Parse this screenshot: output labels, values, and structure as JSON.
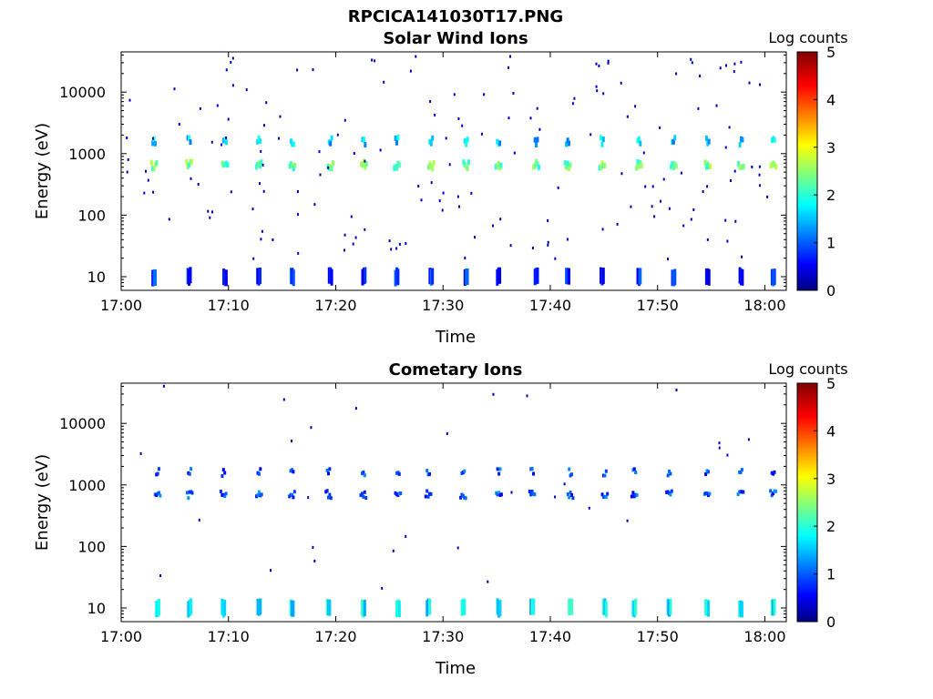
{
  "figure_title": "RPCICA141030T17.PNG",
  "colors": {
    "colormap": [
      "#00007f",
      "#0000ff",
      "#00ffff",
      "#ffff00",
      "#ff0000",
      "#7f0000"
    ],
    "frame": "#000000",
    "background": "#ffffff"
  },
  "chart_data": [
    {
      "type": "heatmap",
      "title": "Solar Wind Ions",
      "xlabel": "Time",
      "ylabel": "Energy (eV)",
      "x_ticks": [
        "17:00",
        "17:10",
        "17:20",
        "17:30",
        "17:40",
        "17:50",
        "18:00"
      ],
      "y_ticks": [
        "10",
        "100",
        "1000",
        "10000"
      ],
      "y_scale": "log",
      "y_range": [
        6,
        45000
      ],
      "x_range_minutes": [
        0,
        62
      ],
      "colorbar": {
        "label": "Log counts",
        "range": [
          0,
          5
        ],
        "ticks": [
          "0",
          "1",
          "2",
          "3",
          "4",
          "5"
        ]
      },
      "sweep_period_minutes": 3.2,
      "bands": [
        {
          "energy": 650,
          "log_counts": 2.4
        },
        {
          "energy": 1600,
          "log_counts": 1.6
        },
        {
          "energy": 10,
          "log_counts": 0.8
        }
      ]
    },
    {
      "type": "heatmap",
      "title": "Cometary Ions",
      "xlabel": "Time",
      "ylabel": "Energy (eV)",
      "x_ticks": [
        "17:00",
        "17:10",
        "17:20",
        "17:30",
        "17:40",
        "17:50",
        "18:00"
      ],
      "y_ticks": [
        "10",
        "100",
        "1000",
        "10000"
      ],
      "y_scale": "log",
      "y_range": [
        6,
        45000
      ],
      "x_range_minutes": [
        0,
        62
      ],
      "colorbar": {
        "label": "Log counts",
        "range": [
          0,
          5
        ],
        "ticks": [
          "0",
          "1",
          "2",
          "3",
          "4",
          "5"
        ]
      },
      "sweep_period_minutes": 3.2,
      "bands": [
        {
          "energy": 700,
          "log_counts": 1.0
        },
        {
          "energy": 1600,
          "log_counts": 0.9
        },
        {
          "energy": 10,
          "log_counts": 1.8
        }
      ]
    }
  ]
}
